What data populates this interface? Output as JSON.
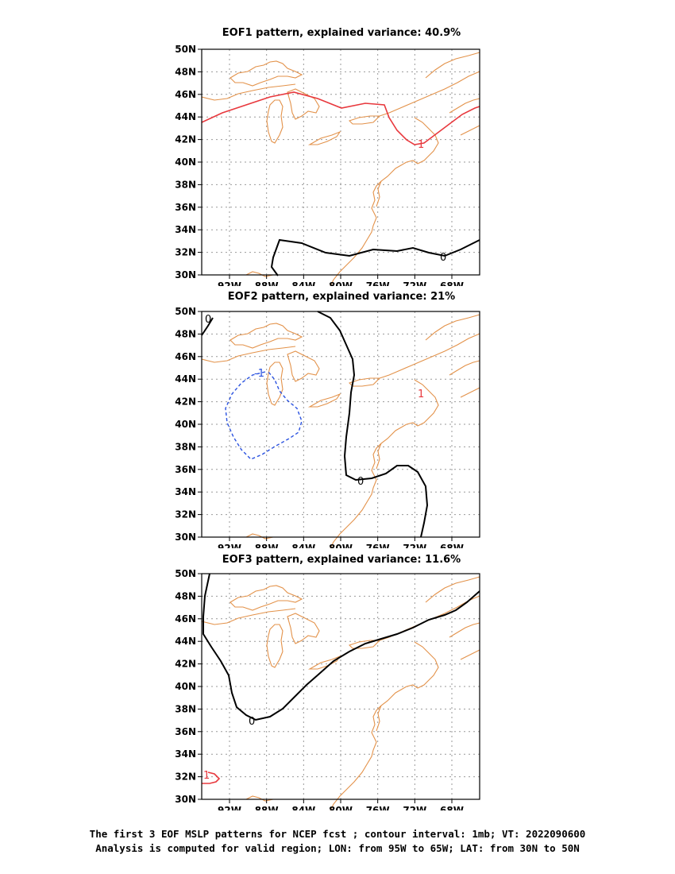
{
  "panels": [
    {
      "title": "EOF1 pattern, explained variance: 40.9%",
      "contour_labels": [
        {
          "text": "1",
          "color": "#e8383d"
        },
        {
          "text": "0",
          "color": "#000000"
        }
      ]
    },
    {
      "title": "EOF2 pattern, explained variance: 21%",
      "contour_labels": [
        {
          "text": "0",
          "color": "#000000"
        },
        {
          "text": "-1",
          "color": "#2a52e0"
        },
        {
          "text": "1",
          "color": "#e8383d"
        },
        {
          "text": "0",
          "color": "#000000"
        }
      ]
    },
    {
      "title": "EOF3 pattern, explained variance: 11.6%",
      "contour_labels": [
        {
          "text": "0",
          "color": "#000000"
        },
        {
          "text": "1",
          "color": "#e8383d"
        }
      ]
    }
  ],
  "axes": {
    "x_ticks": [
      "92W",
      "88W",
      "84W",
      "80W",
      "76W",
      "72W",
      "68W"
    ],
    "y_ticks": [
      "30N",
      "32N",
      "34N",
      "36N",
      "38N",
      "40N",
      "42N",
      "44N",
      "46N",
      "48N",
      "50N"
    ]
  },
  "colors": {
    "coastline": "#e3924a",
    "positive_contour": "#e8383d",
    "negative_contour": "#2a52e0",
    "zero_contour": "#000000",
    "grid": "#999999"
  },
  "footer": {
    "line1": "The first 3 EOF MSLP patterns for NCEP fcst ; contour interval: 1mb; VT: 2022090600",
    "line2": "Analysis is computed for valid region; LON: from 95W to 65W; LAT: from 30N to 50N"
  }
}
